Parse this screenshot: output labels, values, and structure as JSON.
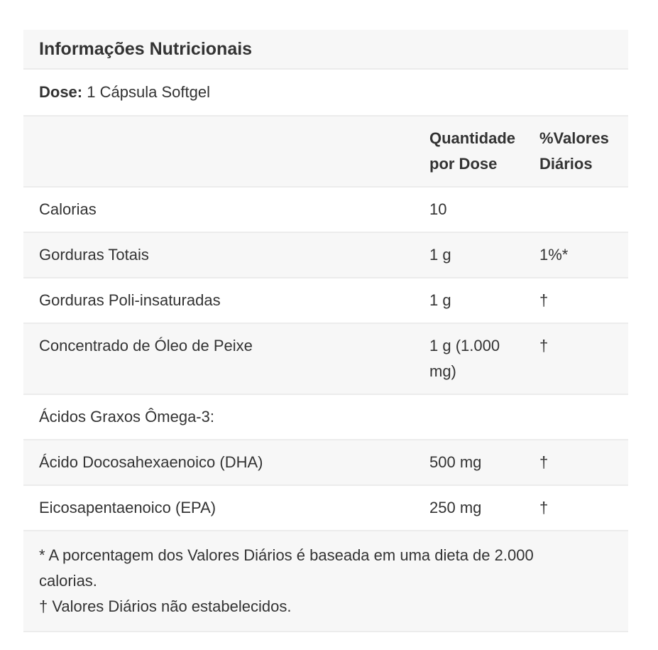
{
  "table": {
    "title": "Informações Nutricionais",
    "serving": {
      "label": "Dose:",
      "value": "1 Cápsula Softgel"
    },
    "columns": {
      "amount": "Quantidade por Dose",
      "daily_value": "%Valores Diários"
    },
    "rows": [
      {
        "name": "Calorias",
        "amount": "10",
        "daily_value": ""
      },
      {
        "name": "Gorduras Totais",
        "amount": "1 g",
        "daily_value": "1%*"
      },
      {
        "name": "Gorduras Poli-insaturadas",
        "amount": "1 g",
        "daily_value": "†"
      },
      {
        "name": "Concentrado de Óleo de Peixe",
        "amount": "1 g (1.000 mg)",
        "daily_value": "†"
      },
      {
        "name": "Ácidos Graxos Ômega-3:",
        "amount": "",
        "daily_value": ""
      },
      {
        "name": "Ácido Docosahexaenoico (DHA)",
        "amount": "500 mg",
        "daily_value": "†"
      },
      {
        "name": "Eicosapentaenoico (EPA)",
        "amount": "250 mg",
        "daily_value": "†"
      }
    ],
    "footnotes": {
      "asterisk": "* A porcentagem dos Valores Diários é baseada em uma dieta de 2.000 calorias.",
      "dagger": "† Valores Diários não estabelecidos."
    },
    "colors": {
      "stripe_background": "#f7f7f7",
      "row_border": "#ececec",
      "text": "#333333"
    }
  }
}
